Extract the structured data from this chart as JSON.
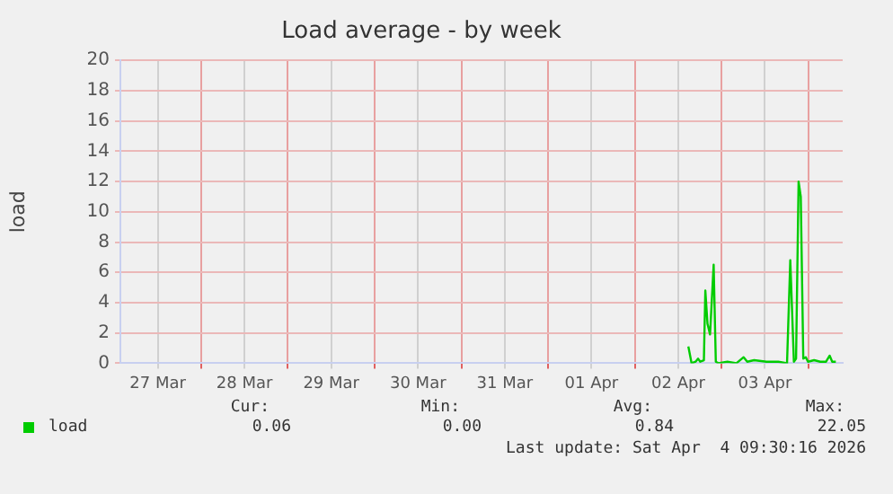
{
  "chart_data": {
    "type": "line",
    "title": "Load average - by week",
    "ylabel": "load",
    "x": [
      "2026-04-02T14:48",
      "2026-04-02T15:42",
      "2026-04-02T16:48",
      "2026-04-02T17:30",
      "2026-04-02T18:06",
      "2026-04-02T19:06",
      "2026-04-02T19:30",
      "2026-04-02T20:06",
      "2026-04-02T20:48",
      "2026-04-02T21:48",
      "2026-04-02T22:24",
      "2026-04-02T23:06",
      "2026-04-03T01:36",
      "2026-04-03T04:06",
      "2026-04-03T06:06",
      "2026-04-03T07:06",
      "2026-04-03T09:00",
      "2026-04-03T12:24",
      "2026-04-03T15:42",
      "2026-04-03T18:06",
      "2026-04-03T19:00",
      "2026-04-03T20:00",
      "2026-04-03T20:36",
      "2026-04-03T21:18",
      "2026-04-03T21:54",
      "2026-04-03T22:36",
      "2026-04-03T23:18",
      "2026-04-03T23:54",
      "2026-04-04T01:36",
      "2026-04-04T03:18",
      "2026-04-04T04:54",
      "2026-04-04T05:54",
      "2026-04-04T06:36",
      "2026-04-04T07:36"
    ],
    "series": [
      {
        "name": "load",
        "color": "#00cc00",
        "values": [
          1.1,
          0,
          0.1,
          0.3,
          0.1,
          0.2,
          4.8,
          2.6,
          1.9,
          6.5,
          0.1,
          0,
          0.1,
          0,
          0.4,
          0.1,
          0.2,
          0.1,
          0.1,
          0,
          6.8,
          0.1,
          0.3,
          12,
          11,
          0.3,
          0.4,
          0.1,
          0.2,
          0.1,
          0.1,
          0.5,
          0.1,
          0.1
        ]
      }
    ],
    "xlim": [
      "2026-03-27T01:40",
      "2026-04-04T09:30"
    ],
    "xticks": [
      {
        "value": "2026-03-27T12:00",
        "label": "27 Mar"
      },
      {
        "value": "2026-03-28T00:00",
        "label": null
      },
      {
        "value": "2026-03-28T12:00",
        "label": "28 Mar"
      },
      {
        "value": "2026-03-29T00:00",
        "label": null
      },
      {
        "value": "2026-03-29T12:00",
        "label": "29 Mar"
      },
      {
        "value": "2026-03-30T00:00",
        "label": null
      },
      {
        "value": "2026-03-30T12:00",
        "label": "30 Mar"
      },
      {
        "value": "2026-03-31T00:00",
        "label": null
      },
      {
        "value": "2026-03-31T12:00",
        "label": "31 Mar"
      },
      {
        "value": "2026-04-01T00:00",
        "label": null
      },
      {
        "value": "2026-04-01T12:00",
        "label": "01 Apr"
      },
      {
        "value": "2026-04-02T00:00",
        "label": null
      },
      {
        "value": "2026-04-02T12:00",
        "label": "02 Apr"
      },
      {
        "value": "2026-04-03T00:00",
        "label": null
      },
      {
        "value": "2026-04-03T12:00",
        "label": "03 Apr"
      },
      {
        "value": "2026-04-04T00:00",
        "label": null
      }
    ],
    "ylim": [
      0,
      20
    ],
    "yticks": [
      0,
      2,
      4,
      6,
      8,
      10,
      12,
      14,
      16,
      18,
      20
    ],
    "grid": true,
    "legend": "bottom left",
    "marker": "none",
    "line_style": "solid",
    "annotations": [
      "Cur:",
      "0.06",
      "Min:",
      "0.00",
      "Avg:",
      "0.84",
      "Max:",
      "22.05",
      "Last update: Sat Apr  4 09:30:16 2026"
    ]
  }
}
